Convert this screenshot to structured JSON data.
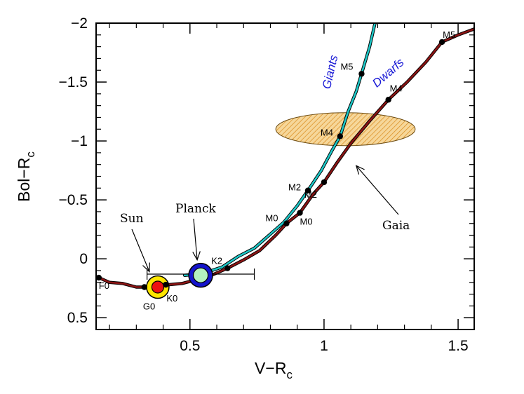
{
  "chart_data": {
    "type": "line",
    "title": "",
    "xlabel": "V−R",
    "xlabel_sub": "c",
    "ylabel": "Bol−R",
    "ylabel_sub": "c",
    "xlim": [
      0.15,
      1.56
    ],
    "ylim": [
      0.6,
      -2.0
    ],
    "y_inverted": true,
    "grid": false,
    "x_ticks": [
      0.5,
      1,
      1.5
    ],
    "x_tick_labels": [
      "0.5",
      "1",
      "1.5"
    ],
    "y_ticks": [
      0.5,
      0,
      -0.5,
      -1,
      -1.5,
      -2
    ],
    "y_tick_labels": [
      "0.5",
      "0",
      "−0.5",
      "−1",
      "−1.5",
      "−2"
    ],
    "series": [
      {
        "name": "Dwarfs",
        "color": "#8b1414",
        "points": [
          [
            0.16,
            0.16
          ],
          [
            0.2,
            0.2
          ],
          [
            0.25,
            0.21
          ],
          [
            0.3,
            0.24
          ],
          [
            0.33,
            0.24
          ],
          [
            0.38,
            0.23
          ],
          [
            0.42,
            0.22
          ],
          [
            0.47,
            0.21
          ],
          [
            0.52,
            0.18
          ],
          [
            0.58,
            0.14
          ],
          [
            0.64,
            0.08
          ],
          [
            0.7,
            0.01
          ],
          [
            0.76,
            -0.07
          ],
          [
            0.82,
            -0.2
          ],
          [
            0.86,
            -0.3
          ],
          [
            0.91,
            -0.39
          ],
          [
            0.96,
            -0.55
          ],
          [
            1.0,
            -0.65
          ],
          [
            1.05,
            -0.82
          ],
          [
            1.1,
            -0.98
          ],
          [
            1.17,
            -1.17
          ],
          [
            1.24,
            -1.35
          ],
          [
            1.31,
            -1.5
          ],
          [
            1.38,
            -1.67
          ],
          [
            1.44,
            -1.84
          ],
          [
            1.5,
            -1.9
          ],
          [
            1.56,
            -1.95
          ]
        ]
      },
      {
        "name": "Giants",
        "color": "#1cc6c6",
        "points": [
          [
            0.48,
            0.14
          ],
          [
            0.53,
            0.13
          ],
          [
            0.58,
            0.1
          ],
          [
            0.62,
            0.07
          ],
          [
            0.68,
            -0.02
          ],
          [
            0.74,
            -0.09
          ],
          [
            0.79,
            -0.19
          ],
          [
            0.85,
            -0.31
          ],
          [
            0.9,
            -0.45
          ],
          [
            0.94,
            -0.58
          ],
          [
            0.99,
            -0.75
          ],
          [
            1.03,
            -0.92
          ],
          [
            1.06,
            -1.04
          ],
          [
            1.09,
            -1.25
          ],
          [
            1.12,
            -1.42
          ],
          [
            1.14,
            -1.57
          ],
          [
            1.17,
            -1.8
          ],
          [
            1.19,
            -2.0
          ]
        ]
      }
    ],
    "markers": [
      {
        "label": "F0",
        "x": 0.16,
        "y": 0.16
      },
      {
        "label": "G0",
        "x": 0.33,
        "y": 0.24
      },
      {
        "label": "K0",
        "x": 0.41,
        "y": 0.22
      },
      {
        "label": "K2",
        "x": 0.64,
        "y": 0.08
      },
      {
        "label": "M0",
        "x": 0.86,
        "y": -0.3
      },
      {
        "label": "M0",
        "x": 0.91,
        "y": -0.39
      },
      {
        "label": "M2",
        "x": 0.94,
        "y": -0.58
      },
      {
        "label": "M2",
        "x": 1.0,
        "y": -0.65
      },
      {
        "label": "M4",
        "x": 1.06,
        "y": -1.04
      },
      {
        "label": "M4",
        "x": 1.24,
        "y": -1.35
      },
      {
        "label": "M5",
        "x": 1.14,
        "y": -1.57
      },
      {
        "label": "M5",
        "x": 1.44,
        "y": -1.84
      }
    ],
    "annotations": [
      {
        "text": "Sun",
        "x": 0.38,
        "y": 0.24,
        "outer_color": "#ffe600",
        "inner_color": "#ee1111",
        "error_bar": [
          0.34,
          0.74,
          0.13
        ]
      },
      {
        "text": "Planck",
        "x": 0.54,
        "y": 0.14,
        "outer_color": "#1414cc",
        "inner_color": "#b4f0c0"
      },
      {
        "text": "Gaia",
        "x": 1.08,
        "y": -1.1,
        "ellipse_half_width": 0.26,
        "ellipse_half_height": 0.14,
        "fill_color": "#f6d79a",
        "hatch_color": "#d98a1a"
      }
    ],
    "branch_labels": [
      "Giants",
      "Dwarfs"
    ]
  }
}
